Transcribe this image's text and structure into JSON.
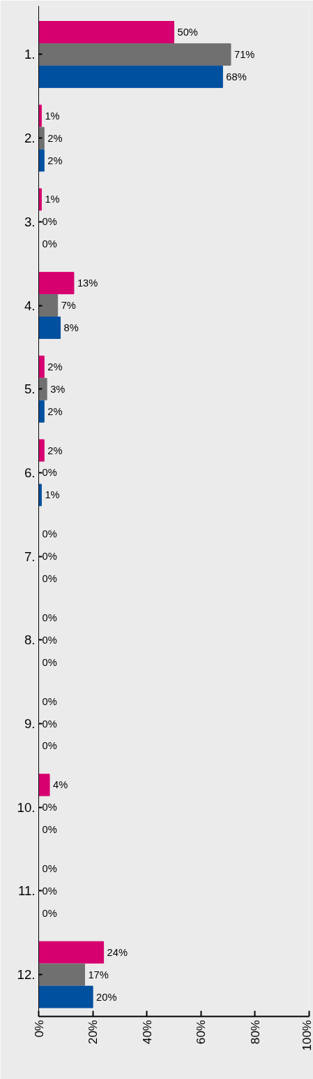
{
  "chart_data": {
    "type": "bar",
    "orientation": "horizontal",
    "categories": [
      "1.",
      "2.",
      "3.",
      "4.",
      "5.",
      "6.",
      "7.",
      "8.",
      "9.",
      "10.",
      "11.",
      "12."
    ],
    "series": [
      {
        "color": "#d6006f",
        "values": [
          50,
          1,
          1,
          13,
          2,
          2,
          0,
          0,
          0,
          4,
          0,
          24
        ],
        "value_labels": [
          "50%",
          "1%",
          "1%",
          "13%",
          "2%",
          "2%",
          "0%",
          "0%",
          "0%",
          "4%",
          "0%",
          "24%"
        ]
      },
      {
        "color": "#707070",
        "values": [
          71,
          2,
          0,
          7,
          3,
          0,
          0,
          0,
          0,
          0,
          0,
          17
        ],
        "value_labels": [
          "71%",
          "2%",
          "0%",
          "7%",
          "3%",
          "0%",
          "0%",
          "0%",
          "0%",
          "0%",
          "0%",
          "17%"
        ]
      },
      {
        "color": "#0050a0",
        "values": [
          68,
          2,
          0,
          8,
          2,
          1,
          0,
          0,
          0,
          0,
          0,
          20
        ],
        "value_labels": [
          "68%",
          "2%",
          "0%",
          "8%",
          "2%",
          "1%",
          "0%",
          "0%",
          "0%",
          "0%",
          "0%",
          "20%"
        ]
      }
    ],
    "xlim": [
      0,
      100
    ],
    "xticks": [
      {
        "value": 0,
        "label": "0%"
      },
      {
        "value": 20,
        "label": "20%"
      },
      {
        "value": 40,
        "label": "40%"
      },
      {
        "value": 60,
        "label": "60%"
      },
      {
        "value": 80,
        "label": "80%"
      },
      {
        "value": 100,
        "label": "100%"
      }
    ]
  }
}
